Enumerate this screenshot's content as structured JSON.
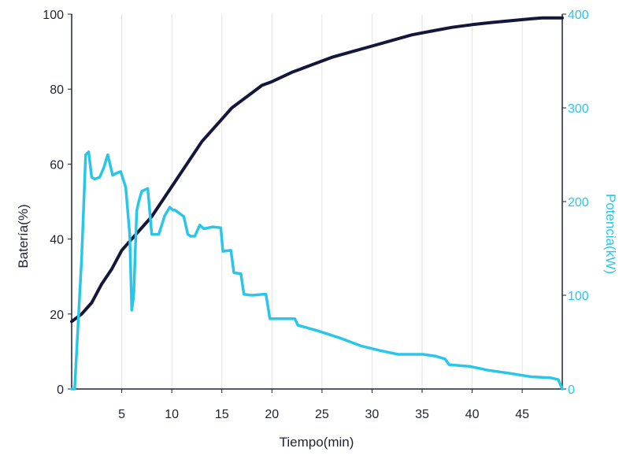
{
  "chart_data": {
    "type": "line",
    "title": "",
    "xlabel": "Tiempo(min)",
    "ylabel_left": "Batería(%)",
    "ylabel_right": "Potencia(kW)",
    "xlim": [
      0,
      49
    ],
    "ylim_left": [
      0,
      100
    ],
    "ylim_right": [
      0,
      400
    ],
    "x_ticks": [
      "5",
      "10",
      "15",
      "20",
      "25",
      "30",
      "35",
      "40",
      "45"
    ],
    "x_tick_values": [
      5,
      10,
      15,
      20,
      25,
      30,
      35,
      40,
      45
    ],
    "y_left_ticks": [
      "0",
      "20",
      "40",
      "60",
      "80",
      "100"
    ],
    "y_left_tick_values": [
      0,
      20,
      40,
      60,
      80,
      100
    ],
    "y_right_ticks": [
      "0",
      "100",
      "200",
      "300",
      "400"
    ],
    "y_right_tick_values": [
      0,
      100,
      200,
      300,
      400
    ],
    "grid": "vertical",
    "colors": {
      "battery": "#14163a",
      "power": "#29c6ea",
      "right_axis": "#29c6ea",
      "grid": "#e3e3e8"
    },
    "series": [
      {
        "axis": "left",
        "x": [
          0,
          1,
          2,
          3,
          4,
          5,
          6,
          7,
          8,
          9,
          10,
          11,
          12,
          13,
          14,
          15,
          16,
          17,
          18,
          19,
          20,
          22,
          24,
          26,
          28,
          30,
          32,
          34,
          36,
          38,
          40,
          42,
          44,
          46,
          47,
          48,
          49
        ],
        "y": [
          18,
          20,
          23,
          28,
          32,
          37,
          40,
          43,
          46,
          50,
          54,
          58,
          62,
          66,
          69,
          72,
          75,
          77,
          79,
          81,
          82,
          84.5,
          86.5,
          88.5,
          90,
          91.5,
          93,
          94.5,
          95.5,
          96.5,
          97.2,
          97.8,
          98.3,
          98.8,
          99,
          99,
          99
        ]
      },
      {
        "axis": "right",
        "x": [
          0,
          0.3,
          0.6,
          1.0,
          1.4,
          1.7,
          2.0,
          2.3,
          2.8,
          3.2,
          3.6,
          4.1,
          4.4,
          4.9,
          5.4,
          5.8,
          6.0,
          6.2,
          6.5,
          6.7,
          7.0,
          7.6,
          8.0,
          8.2,
          8.7,
          9.3,
          9.8,
          10.1,
          10.3,
          11.2,
          11.6,
          11.9,
          12.3,
          12.8,
          13.2,
          14.1,
          14.9,
          15.1,
          15.9,
          16.2,
          16.9,
          17.2,
          18.0,
          19.1,
          19.4,
          19.8,
          20.3,
          22.3,
          22.6,
          24.6,
          26.9,
          28.9,
          30.8,
          32.6,
          35.1,
          36.4,
          37.3,
          37.7,
          39.8,
          41.6,
          43.6,
          45.9,
          47.8,
          48.6,
          49
        ],
        "y": [
          0,
          0,
          60,
          140,
          250,
          253,
          226,
          224,
          226,
          236,
          250,
          228,
          230,
          232,
          215,
          165,
          84,
          100,
          190,
          200,
          211,
          214,
          165,
          165,
          165,
          185,
          194,
          191,
          191,
          184,
          165,
          163,
          163,
          175,
          171,
          173,
          172,
          147,
          148,
          124,
          123,
          101,
          100,
          101,
          101,
          75,
          75,
          75,
          68,
          62,
          54,
          46,
          41,
          37,
          37,
          35,
          32,
          26,
          24,
          20,
          17,
          13,
          12,
          10,
          0
        ]
      }
    ]
  }
}
